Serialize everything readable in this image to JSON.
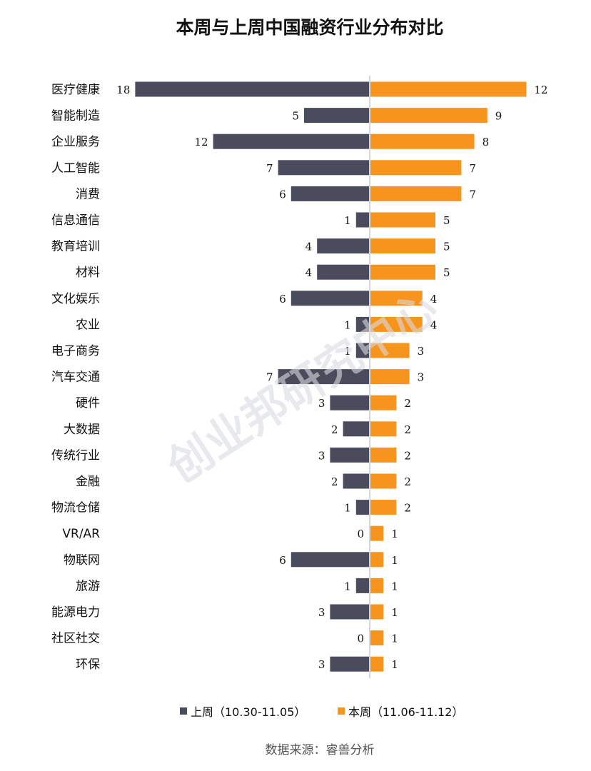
{
  "chart_data": {
    "type": "bar",
    "orientation": "horizontal-diverging",
    "title": "本周与上周中国融资行业分布对比",
    "categories": [
      "医疗健康",
      "智能制造",
      "企业服务",
      "人工智能",
      "消费",
      "信息通信",
      "教育培训",
      "材料",
      "文化娱乐",
      "农业",
      "电子商务",
      "汽车交通",
      "硬件",
      "大数据",
      "传统行业",
      "金融",
      "物流仓储",
      "VR/AR",
      "物联网",
      "旅游",
      "能源电力",
      "社区社交",
      "环保"
    ],
    "series": [
      {
        "name": "上周（10.30-11.05）",
        "color": "#4a4b5c",
        "values": [
          18,
          5,
          12,
          7,
          6,
          1,
          4,
          4,
          6,
          1,
          1,
          7,
          3,
          2,
          3,
          2,
          1,
          0,
          6,
          1,
          3,
          0,
          3
        ]
      },
      {
        "name": "本周（11.06-11.12）",
        "color": "#f7941d",
        "values": [
          12,
          9,
          8,
          7,
          7,
          5,
          5,
          5,
          4,
          4,
          3,
          3,
          2,
          2,
          2,
          2,
          2,
          1,
          1,
          1,
          1,
          1,
          1
        ]
      }
    ],
    "legend_position": "bottom",
    "grid": false,
    "source": "数据来源：睿兽分析",
    "watermark": "创业邦研究中心"
  },
  "colors": {
    "axis": "#c8c8c8",
    "text": "#111111"
  }
}
